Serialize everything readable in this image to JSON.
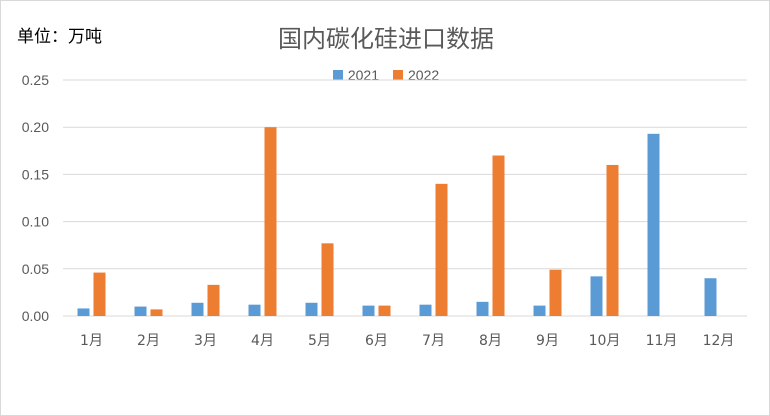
{
  "unit_label": "单位：万吨",
  "chart_data": {
    "type": "bar",
    "title": "国内碳化硅进口数据",
    "categories": [
      "1月",
      "2月",
      "3月",
      "4月",
      "5月",
      "6月",
      "7月",
      "8月",
      "9月",
      "10月",
      "11月",
      "12月"
    ],
    "series": [
      {
        "name": "2021",
        "color": "#5b9bd5",
        "values": [
          0.008,
          0.01,
          0.014,
          0.012,
          0.014,
          0.011,
          0.012,
          0.015,
          0.011,
          0.042,
          0.193,
          0.04
        ]
      },
      {
        "name": "2022",
        "color": "#ed7d31",
        "values": [
          0.046,
          0.007,
          0.033,
          0.2,
          0.077,
          0.011,
          0.14,
          0.17,
          0.049,
          0.16,
          null,
          null
        ]
      }
    ],
    "yticks": [
      "0.00",
      "0.05",
      "0.10",
      "0.15",
      "0.20",
      "0.25"
    ],
    "ylim": [
      0,
      0.25
    ],
    "grid": true,
    "legend_position": "top"
  }
}
